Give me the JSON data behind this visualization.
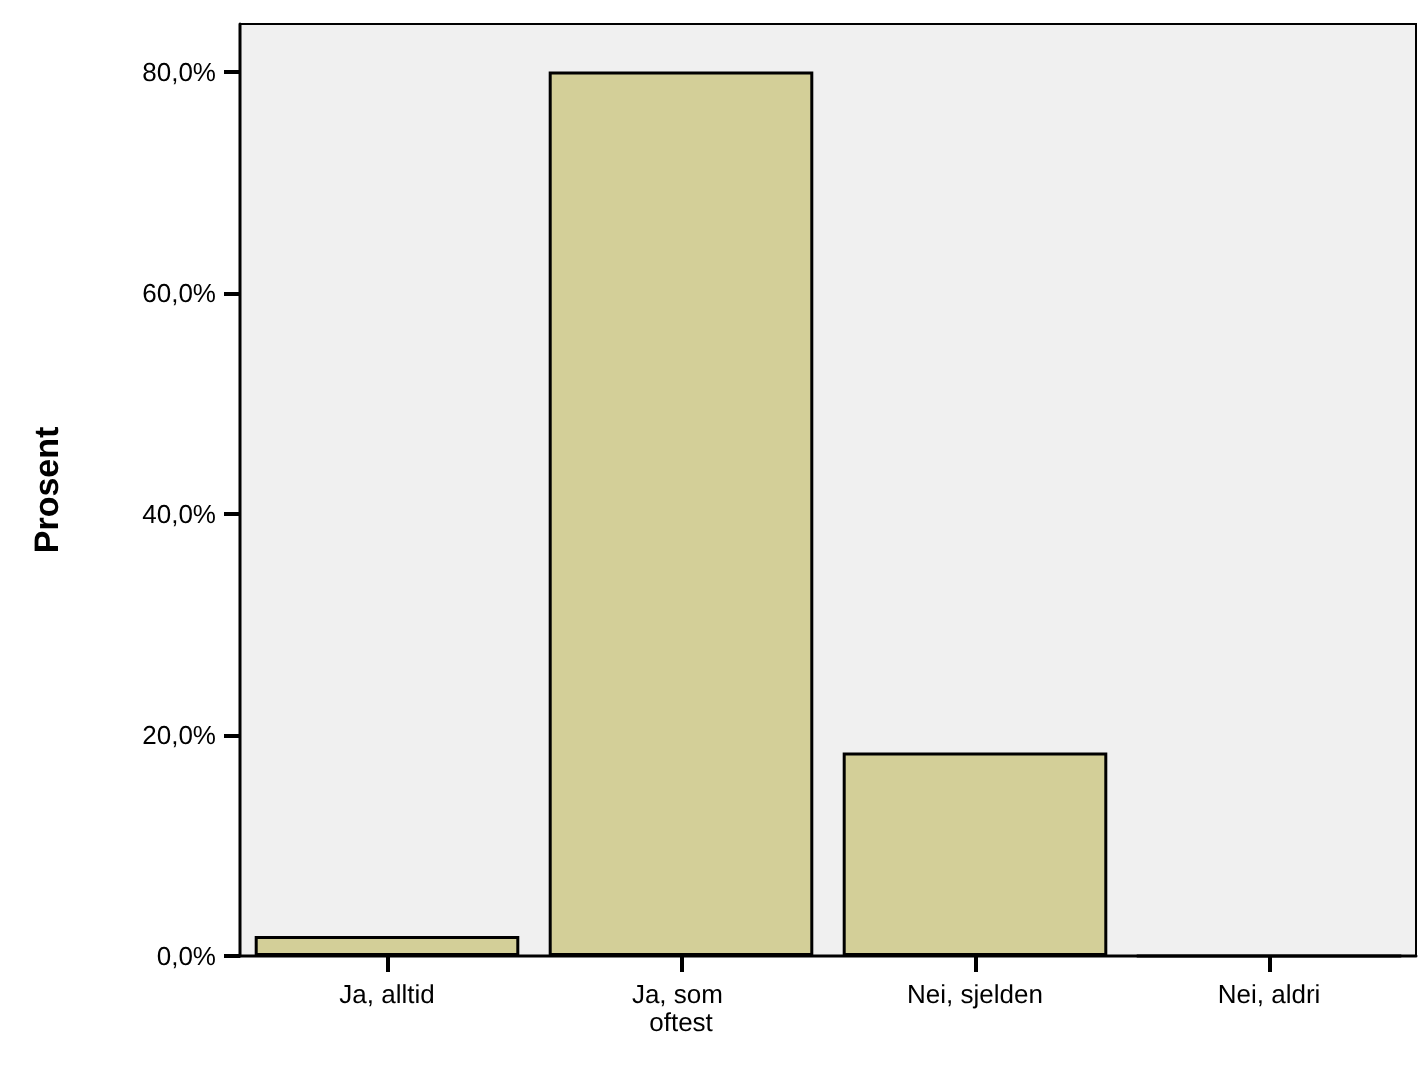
{
  "chart_data": {
    "type": "bar",
    "ylabel": "Prosent",
    "categories": [
      "Ja, alltid",
      "Ja, som oftest",
      "Nei, sjelden",
      "Nei, aldri"
    ],
    "values": [
      1.8,
      80.0,
      18.4,
      0
    ],
    "color": "#d3cf98",
    "ylim": [
      0,
      84.3
    ],
    "yticks": [
      {
        "value": 0,
        "label": "0,0%"
      },
      {
        "value": 20,
        "label": "20,0%"
      },
      {
        "value": 40,
        "label": "40,0%"
      },
      {
        "value": 60,
        "label": "60,0%"
      },
      {
        "value": 80,
        "label": "80,0%"
      }
    ],
    "grid": false
  }
}
